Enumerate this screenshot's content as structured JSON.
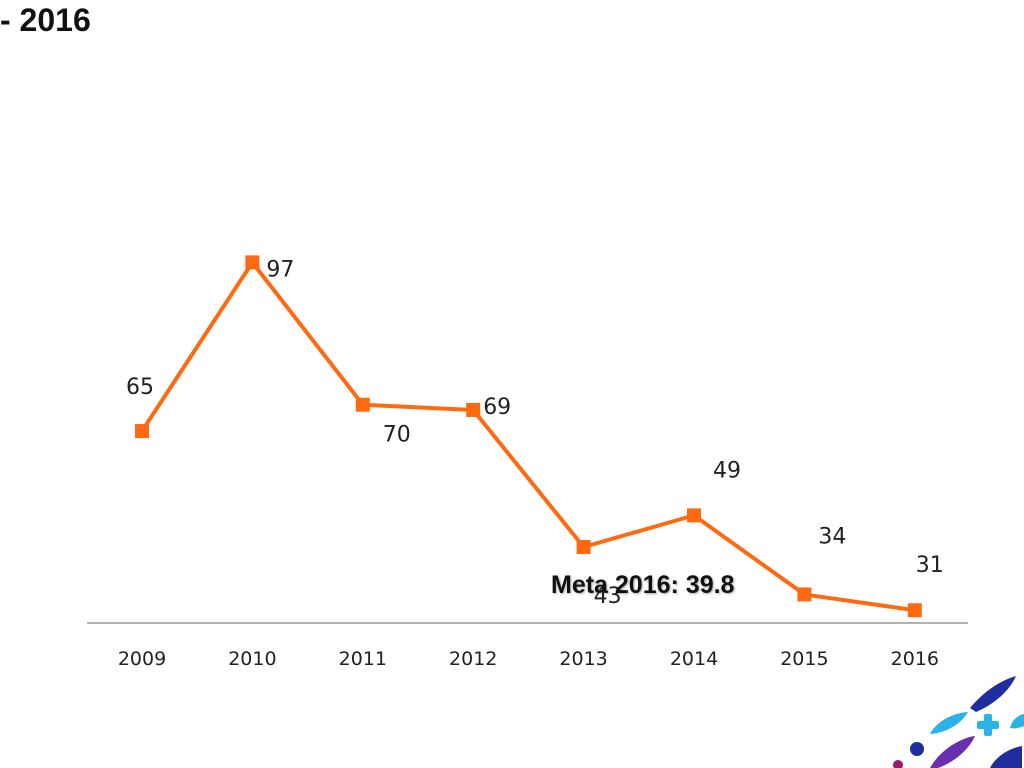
{
  "header": {
    "title": "- 2016"
  },
  "chart_data": {
    "type": "line",
    "categories": [
      "2009",
      "2010",
      "2011",
      "2012",
      "2013",
      "2014",
      "2015",
      "2016"
    ],
    "series": [
      {
        "values": [
          65,
          97,
          70,
          69,
          43,
          49,
          34,
          31
        ],
        "color": "#FF6A10"
      }
    ],
    "data_labels": [
      "65",
      "97",
      "70",
      "69",
      "43",
      "49",
      "34",
      "31"
    ],
    "annotation": "Meta 2016: 39.8",
    "ylim": [
      0,
      130
    ],
    "grid": false,
    "legend": "none"
  },
  "decoration": {
    "colors": {
      "navy": "#1F2E9E",
      "sky": "#2BB3E8",
      "purple": "#6A2FB0",
      "magenta": "#9B1B6E"
    },
    "icon": "medical-cross-icon"
  }
}
